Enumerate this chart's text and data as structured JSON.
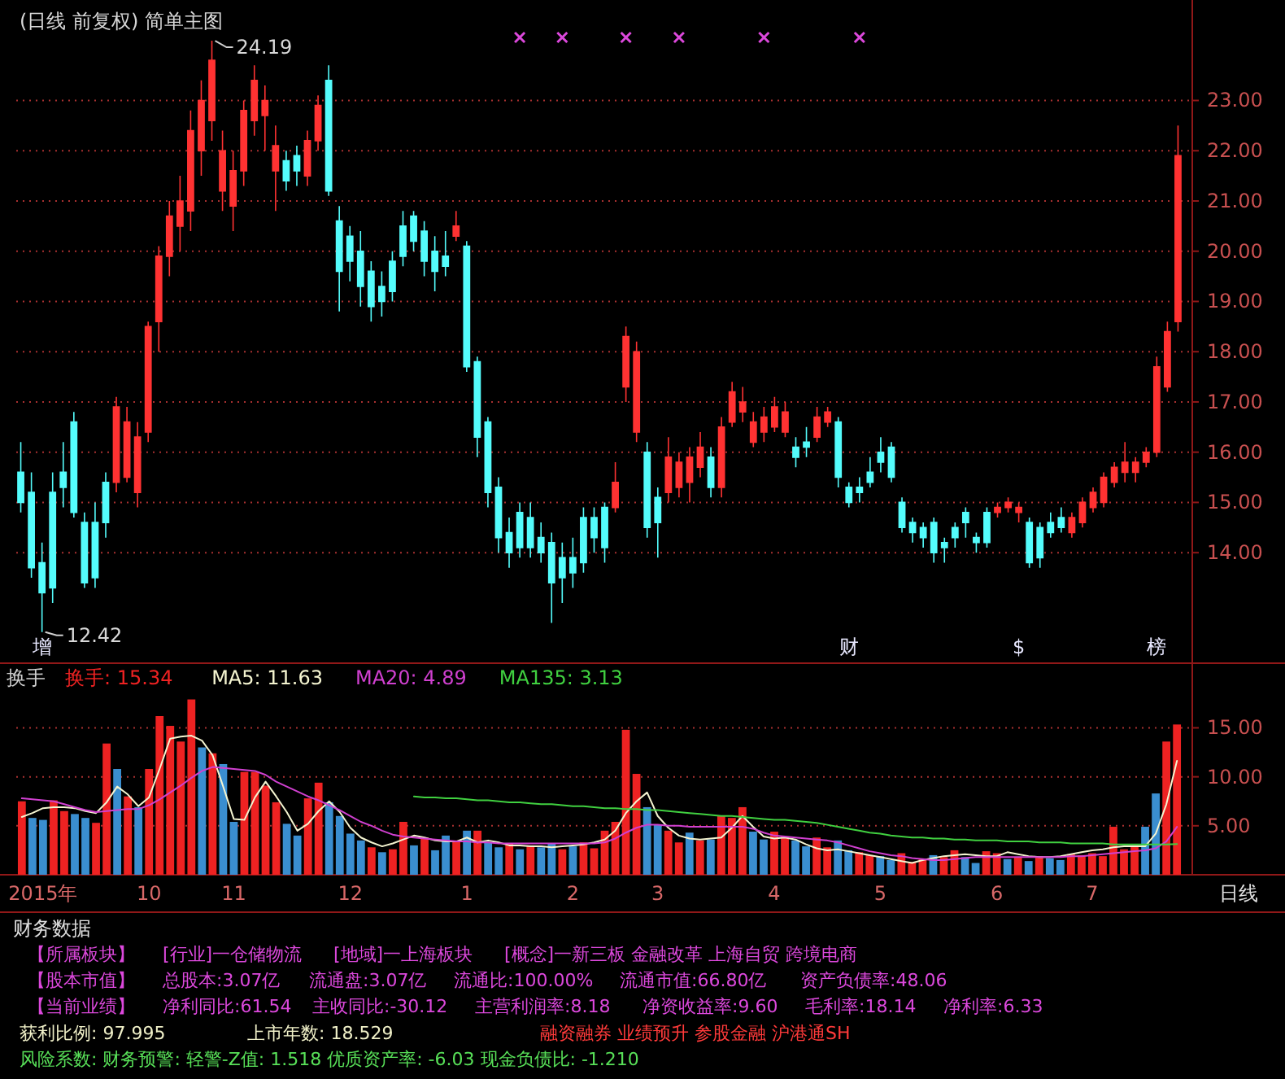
{
  "chart_data": [
    {
      "type": "candlestick",
      "title": "(日线 前复权) 简单主图",
      "categories": [
        null,
        null,
        "增",
        null,
        null,
        null,
        null,
        null,
        null,
        null,
        null,
        null,
        null,
        null,
        null,
        null,
        null,
        null,
        null,
        null,
        null,
        null,
        null,
        null,
        null,
        null,
        null,
        null,
        null,
        null,
        null,
        null,
        null,
        null,
        null,
        null,
        null,
        null,
        null,
        null,
        null,
        null,
        null,
        null,
        null,
        null,
        null,
        null,
        null,
        null,
        null,
        null,
        null,
        null,
        null,
        null,
        null,
        null,
        null,
        null,
        null,
        null,
        null,
        null,
        null,
        null,
        null,
        null,
        null,
        null,
        null,
        null,
        null,
        null,
        null,
        null,
        null,
        null,
        "财",
        null,
        null,
        null,
        null,
        null,
        null,
        null,
        null,
        null,
        null,
        null,
        null,
        null,
        null,
        null,
        "$",
        null,
        null,
        null,
        null,
        null,
        null,
        null,
        null,
        null,
        null,
        null,
        null,
        "榜",
        null,
        null
      ],
      "ohlc": [
        [
          15.6,
          16.2,
          14.8,
          15.0
        ],
        [
          15.2,
          15.6,
          13.5,
          13.7
        ],
        [
          13.8,
          14.2,
          12.42,
          13.2
        ],
        [
          15.2,
          15.6,
          13.0,
          13.3
        ],
        [
          15.6,
          16.2,
          14.9,
          15.3
        ],
        [
          16.6,
          16.8,
          14.7,
          14.8
        ],
        [
          14.6,
          14.8,
          13.3,
          13.4
        ],
        [
          14.6,
          15.0,
          13.3,
          13.5
        ],
        [
          15.4,
          15.6,
          14.3,
          14.6
        ],
        [
          15.4,
          17.1,
          15.2,
          16.9
        ],
        [
          15.5,
          16.9,
          15.4,
          16.6
        ],
        [
          15.2,
          16.6,
          14.9,
          16.3
        ],
        [
          16.4,
          18.6,
          16.2,
          18.5
        ],
        [
          18.6,
          20.1,
          18.0,
          19.9
        ],
        [
          19.9,
          21.0,
          19.5,
          20.7
        ],
        [
          20.5,
          21.5,
          20.0,
          21.0
        ],
        [
          20.8,
          22.8,
          20.4,
          22.4
        ],
        [
          22.0,
          23.4,
          21.5,
          23.0
        ],
        [
          22.6,
          24.19,
          22.2,
          23.8
        ],
        [
          21.2,
          22.4,
          20.8,
          22.0
        ],
        [
          20.9,
          22.0,
          20.4,
          21.6
        ],
        [
          21.6,
          23.0,
          21.3,
          22.8
        ],
        [
          22.6,
          23.7,
          22.3,
          23.4
        ],
        [
          22.7,
          23.3,
          22.0,
          23.0
        ],
        [
          21.6,
          22.5,
          20.8,
          22.1
        ],
        [
          21.8,
          22.0,
          21.2,
          21.4
        ],
        [
          21.9,
          22.1,
          21.3,
          21.6
        ],
        [
          21.5,
          22.4,
          21.3,
          22.2
        ],
        [
          22.2,
          23.1,
          22.0,
          22.9
        ],
        [
          23.4,
          23.7,
          21.1,
          21.2
        ],
        [
          20.6,
          20.9,
          18.8,
          19.6
        ],
        [
          20.3,
          20.5,
          19.4,
          19.8
        ],
        [
          20.0,
          20.4,
          18.9,
          19.3
        ],
        [
          19.6,
          19.8,
          18.6,
          18.9
        ],
        [
          19.3,
          19.6,
          18.7,
          19.0
        ],
        [
          19.8,
          20.0,
          19.0,
          19.2
        ],
        [
          20.5,
          20.8,
          19.7,
          19.9
        ],
        [
          20.7,
          20.8,
          20.0,
          20.2
        ],
        [
          20.4,
          20.6,
          19.5,
          19.8
        ],
        [
          20.0,
          20.3,
          19.2,
          19.6
        ],
        [
          19.9,
          20.4,
          19.5,
          19.7
        ],
        [
          20.3,
          20.8,
          20.2,
          20.5
        ],
        [
          20.1,
          20.2,
          17.6,
          17.7
        ],
        [
          17.8,
          17.9,
          15.9,
          16.3
        ],
        [
          16.6,
          16.7,
          14.9,
          15.2
        ],
        [
          15.3,
          15.5,
          14.0,
          14.3
        ],
        [
          14.4,
          14.7,
          13.7,
          14.0
        ],
        [
          14.8,
          15.0,
          13.9,
          14.1
        ],
        [
          14.7,
          15.0,
          13.9,
          14.1
        ],
        [
          14.3,
          14.6,
          13.8,
          14.0
        ],
        [
          14.2,
          14.4,
          12.6,
          13.4
        ],
        [
          13.9,
          14.2,
          13.0,
          13.5
        ],
        [
          13.9,
          14.3,
          13.3,
          13.6
        ],
        [
          14.7,
          14.9,
          13.6,
          13.8
        ],
        [
          14.7,
          14.9,
          14.0,
          14.3
        ],
        [
          14.9,
          15.0,
          13.8,
          14.1
        ],
        [
          14.9,
          15.8,
          14.8,
          15.4
        ],
        [
          17.3,
          18.5,
          17.0,
          18.3
        ],
        [
          16.4,
          18.2,
          16.2,
          18.0
        ],
        [
          16.0,
          16.2,
          14.3,
          14.5
        ],
        [
          15.1,
          15.3,
          13.9,
          14.6
        ],
        [
          15.2,
          16.3,
          15.0,
          15.9
        ],
        [
          15.3,
          16.0,
          15.1,
          15.8
        ],
        [
          15.4,
          16.1,
          15.0,
          15.9
        ],
        [
          15.7,
          16.4,
          15.5,
          16.1
        ],
        [
          15.9,
          16.1,
          15.1,
          15.3
        ],
        [
          15.3,
          16.7,
          15.1,
          16.5
        ],
        [
          16.6,
          17.4,
          16.5,
          17.2
        ],
        [
          16.8,
          17.3,
          16.6,
          17.0
        ],
        [
          16.2,
          16.8,
          16.1,
          16.6
        ],
        [
          16.4,
          16.9,
          16.2,
          16.7
        ],
        [
          16.5,
          17.1,
          16.4,
          16.9
        ],
        [
          16.4,
          17.0,
          16.3,
          16.8
        ],
        [
          16.1,
          16.3,
          15.7,
          15.9
        ],
        [
          16.2,
          16.5,
          15.9,
          16.1
        ],
        [
          16.3,
          16.9,
          16.2,
          16.7
        ],
        [
          16.6,
          16.9,
          16.5,
          16.8
        ],
        [
          16.6,
          16.7,
          15.3,
          15.5
        ],
        [
          15.3,
          15.4,
          14.9,
          15.0
        ],
        [
          15.3,
          15.5,
          15.0,
          15.2
        ],
        [
          15.6,
          15.9,
          15.3,
          15.4
        ],
        [
          16.0,
          16.3,
          15.6,
          15.8
        ],
        [
          16.1,
          16.2,
          15.4,
          15.5
        ],
        [
          15.0,
          15.1,
          14.4,
          14.5
        ],
        [
          14.6,
          14.7,
          14.2,
          14.4
        ],
        [
          14.5,
          14.6,
          14.1,
          14.3
        ],
        [
          14.6,
          14.7,
          13.8,
          14.0
        ],
        [
          14.2,
          14.3,
          13.8,
          14.1
        ],
        [
          14.5,
          14.6,
          14.1,
          14.3
        ],
        [
          14.8,
          14.9,
          14.3,
          14.6
        ],
        [
          14.3,
          14.4,
          14.0,
          14.2
        ],
        [
          14.8,
          14.9,
          14.1,
          14.2
        ],
        [
          14.8,
          15.0,
          14.7,
          14.9
        ],
        [
          14.9,
          15.1,
          14.8,
          15.0
        ],
        [
          14.8,
          15.0,
          14.6,
          14.9
        ],
        [
          14.6,
          14.7,
          13.7,
          13.8
        ],
        [
          14.5,
          14.6,
          13.7,
          13.9
        ],
        [
          14.6,
          14.8,
          14.3,
          14.4
        ],
        [
          14.7,
          14.9,
          14.4,
          14.5
        ],
        [
          14.4,
          14.8,
          14.3,
          14.7
        ],
        [
          14.6,
          15.1,
          14.5,
          15.0
        ],
        [
          14.9,
          15.3,
          14.8,
          15.2
        ],
        [
          15.0,
          15.6,
          14.9,
          15.5
        ],
        [
          15.4,
          15.8,
          15.3,
          15.7
        ],
        [
          15.6,
          16.2,
          15.4,
          15.8
        ],
        [
          15.6,
          15.9,
          15.4,
          15.8
        ],
        [
          15.8,
          16.1,
          15.7,
          16.0
        ],
        [
          16.0,
          17.9,
          15.9,
          17.7
        ],
        [
          17.3,
          18.6,
          17.2,
          18.4
        ],
        [
          18.6,
          22.5,
          18.4,
          21.9
        ]
      ],
      "colors": [
        "#54fcfc",
        "#54fcfc",
        "#54fcfc",
        "#54fcfc",
        "#54fcfc",
        "#54fcfc",
        "#54fcfc",
        "#54fcfc",
        "#54fcfc",
        "#ff3232",
        "#ff3232",
        "#ff3232",
        "#ff3232",
        "#ff3232",
        "#ff3232",
        "#ff3232",
        "#ff3232",
        "#ff3232",
        "#ff3232",
        "#ff3232",
        "#ff3232",
        "#ff3232",
        "#ff3232",
        "#ff3232",
        "#ff3232",
        "#54fcfc",
        "#54fcfc",
        "#ff3232",
        "#ff3232",
        "#54fcfc",
        "#54fcfc",
        "#54fcfc",
        "#54fcfc",
        "#54fcfc",
        "#54fcfc",
        "#54fcfc",
        "#54fcfc",
        "#54fcfc",
        "#54fcfc",
        "#54fcfc",
        "#54fcfc",
        "#ff3232",
        "#54fcfc",
        "#54fcfc",
        "#54fcfc",
        "#54fcfc",
        "#54fcfc",
        "#54fcfc",
        "#54fcfc",
        "#54fcfc",
        "#54fcfc",
        "#54fcfc",
        "#54fcfc",
        "#54fcfc",
        "#54fcfc",
        "#54fcfc",
        "#ff3232",
        "#ff3232",
        "#ff3232",
        "#54fcfc",
        "#54fcfc",
        "#ff3232",
        "#ff3232",
        "#ff3232",
        "#ff3232",
        "#54fcfc",
        "#ff3232",
        "#ff3232",
        "#ff3232",
        "#ff3232",
        "#ff3232",
        "#ff3232",
        "#ff3232",
        "#54fcfc",
        "#54fcfc",
        "#ff3232",
        "#ff3232",
        "#54fcfc",
        "#54fcfc",
        "#54fcfc",
        "#54fcfc",
        "#54fcfc",
        "#54fcfc",
        "#54fcfc",
        "#54fcfc",
        "#54fcfc",
        "#54fcfc",
        "#54fcfc",
        "#54fcfc",
        "#54fcfc",
        "#54fcfc",
        "#54fcfc",
        "#ff3232",
        "#ff3232",
        "#ff3232",
        "#54fcfc",
        "#54fcfc",
        "#54fcfc",
        "#54fcfc",
        "#ff3232",
        "#ff3232",
        "#ff3232",
        "#ff3232",
        "#ff3232",
        "#ff3232",
        "#ff3232",
        "#ff3232",
        "#ff3232",
        "#ff3232",
        "#ff3232"
      ],
      "ylim": [
        11.8,
        25
      ],
      "yticks": [
        {
          "value": 14,
          "label": "14.00"
        },
        {
          "value": 15,
          "label": "15.00"
        },
        {
          "value": 16,
          "label": "16.00"
        },
        {
          "value": 17,
          "label": "17.00"
        },
        {
          "value": 18,
          "label": "18.00"
        },
        {
          "value": 19,
          "label": "19.00"
        },
        {
          "value": 20,
          "label": "20.00"
        },
        {
          "value": 21,
          "label": "21.00"
        },
        {
          "value": 22,
          "label": "22.00"
        },
        {
          "value": 23,
          "label": "23.00"
        }
      ],
      "grid": "y",
      "annotations": [
        "24.19",
        "12.42"
      ]
    },
    {
      "type": "bar",
      "title": "换手",
      "xlabel": "日线",
      "categories": [
        null,
        null,
        "2015年",
        null,
        null,
        null,
        null,
        null,
        null,
        null,
        null,
        null,
        "10",
        null,
        null,
        null,
        null,
        null,
        null,
        null,
        "11",
        null,
        null,
        null,
        null,
        null,
        null,
        null,
        null,
        null,
        null,
        "12",
        null,
        null,
        null,
        null,
        null,
        null,
        null,
        null,
        null,
        null,
        "1",
        null,
        null,
        null,
        null,
        null,
        null,
        null,
        null,
        null,
        "2",
        null,
        null,
        null,
        null,
        null,
        null,
        null,
        "3",
        null,
        null,
        null,
        null,
        null,
        null,
        null,
        null,
        null,
        null,
        "4",
        null,
        null,
        null,
        null,
        null,
        null,
        null,
        null,
        null,
        "5",
        null,
        null,
        null,
        null,
        null,
        null,
        null,
        null,
        null,
        null,
        "6",
        null,
        null,
        null,
        null,
        null,
        null,
        null,
        null,
        "7",
        null,
        null,
        null,
        null,
        null,
        null,
        null,
        null
      ],
      "series": [
        {
          "name": "换手: 15.34",
          "type": "bar",
          "colors": [
            "#ee2222",
            "#3a8ed0",
            "#3a8ed0",
            "#ee2222",
            "#ee2222",
            "#3a8ed0",
            "#3a8ed0",
            "#ee2222",
            "#ee2222",
            "#3a8ed0",
            "#ee2222",
            "#3a8ed0",
            "#ee2222",
            "#ee2222",
            "#ee2222",
            "#ee2222",
            "#ee2222",
            "#3a8ed0",
            "#ee2222",
            "#3a8ed0",
            "#3a8ed0",
            "#ee2222",
            "#ee2222",
            "#ee2222",
            "#ee2222",
            "#3a8ed0",
            "#3a8ed0",
            "#ee2222",
            "#ee2222",
            "#3a8ed0",
            "#3a8ed0",
            "#3a8ed0",
            "#3a8ed0",
            "#ee2222",
            "#3a8ed0",
            "#ee2222",
            "#ee2222",
            "#3a8ed0",
            "#ee2222",
            "#3a8ed0",
            "#3a8ed0",
            "#ee2222",
            "#3a8ed0",
            "#ee2222",
            "#3a8ed0",
            "#3a8ed0",
            "#ee2222",
            "#3a8ed0",
            "#ee2222",
            "#3a8ed0",
            "#3a8ed0",
            "#ee2222",
            "#3a8ed0",
            "#ee2222",
            "#ee2222",
            "#ee2222",
            "#ee2222",
            "#ee2222",
            "#ee2222",
            "#3a8ed0",
            "#3a8ed0",
            "#ee2222",
            "#ee2222",
            "#3a8ed0",
            "#ee2222",
            "#3a8ed0",
            "#ee2222",
            "#ee2222",
            "#ee2222",
            "#3a8ed0",
            "#3a8ed0",
            "#ee2222",
            "#ee2222",
            "#3a8ed0",
            "#3a8ed0",
            "#ee2222",
            "#ee2222",
            "#3a8ed0",
            "#3a8ed0",
            "#ee2222",
            "#ee2222",
            "#3a8ed0",
            "#3a8ed0",
            "#ee2222",
            "#ee2222",
            "#ee2222",
            "#3a8ed0",
            "#ee2222",
            "#ee2222",
            "#3a8ed0",
            "#3a8ed0",
            "#ee2222",
            "#ee2222",
            "#3a8ed0",
            "#ee2222",
            "#3a8ed0",
            "#ee2222",
            "#3a8ed0",
            "#3a8ed0",
            "#ee2222",
            "#ee2222",
            "#ee2222",
            "#ee2222",
            "#ee2222",
            "#ee2222",
            "#ee2222",
            "#3a8ed0",
            "#3a8ed0",
            "#ee2222",
            "#ee2222"
          ],
          "values": [
            7.5,
            5.8,
            5.6,
            7.6,
            6.5,
            6.2,
            5.8,
            5.3,
            13.4,
            10.8,
            8.0,
            6.9,
            10.8,
            16.2,
            15.2,
            13.6,
            17.9,
            13.0,
            12.4,
            11.3,
            5.4,
            10.5,
            10.5,
            9.1,
            7.4,
            5.2,
            4.0,
            7.8,
            9.4,
            7.4,
            6.0,
            4.2,
            3.5,
            2.8,
            2.3,
            2.6,
            5.4,
            3.0,
            3.8,
            2.5,
            4.0,
            3.5,
            4.5,
            4.5,
            3.3,
            2.8,
            3.2,
            2.6,
            3.0,
            2.8,
            3.2,
            2.6,
            2.9,
            3.3,
            2.7,
            4.5,
            5.4,
            14.8,
            10.3,
            6.9,
            5.1,
            4.5,
            3.3,
            4.3,
            3.5,
            3.6,
            6.0,
            5.8,
            6.9,
            4.4,
            3.6,
            4.4,
            3.9,
            3.5,
            2.9,
            3.8,
            2.8,
            3.5,
            2.5,
            2.3,
            2.0,
            1.9,
            1.5,
            2.2,
            1.3,
            1.6,
            2.0,
            1.8,
            2.5,
            1.8,
            1.2,
            2.4,
            2.2,
            1.6,
            1.8,
            1.4,
            1.9,
            1.7,
            1.5,
            2.1,
            2.0,
            2.2,
            1.9,
            4.9,
            2.6,
            2.9,
            4.9,
            8.3,
            13.6,
            15.34
          ]
        },
        {
          "name": "MA5: 11.63",
          "type": "line",
          "color": "#f4f4d0",
          "values": [
            5.9,
            6.3,
            6.8,
            6.9,
            6.9,
            6.8,
            6.5,
            6.3,
            7.4,
            9.0,
            8.2,
            7.0,
            7.9,
            10.8,
            13.9,
            14.1,
            14.2,
            13.7,
            12.2,
            9.0,
            5.7,
            5.6,
            7.9,
            9.5,
            8.0,
            6.4,
            4.5,
            5.2,
            6.5,
            7.5,
            6.4,
            4.8,
            3.8,
            3.3,
            2.9,
            3.2,
            3.6,
            4.0,
            3.8,
            3.5,
            3.4,
            3.4,
            3.8,
            3.3,
            3.5,
            3.3,
            3.0,
            3.0,
            2.9,
            2.9,
            2.8,
            2.9,
            3.0,
            3.1,
            3.3,
            3.6,
            4.5,
            6.3,
            7.5,
            8.4,
            6.0,
            4.8,
            4.0,
            3.7,
            3.6,
            3.7,
            3.8,
            4.8,
            6.0,
            4.9,
            3.9,
            3.7,
            3.8,
            3.6,
            3.1,
            2.7,
            2.5,
            2.6,
            2.4,
            2.2,
            2.0,
            1.8,
            1.6,
            1.4,
            1.2,
            1.5,
            1.7,
            1.9,
            2.0,
            2.1,
            2.0,
            1.9,
            1.9,
            2.3,
            2.1,
            1.9,
            1.8,
            1.8,
            1.9,
            2.1,
            2.3,
            2.5,
            2.6,
            2.8,
            2.9,
            2.9,
            2.9,
            4.2,
            7.2,
            11.63
          ]
        },
        {
          "name": "MA20: 4.89",
          "type": "line",
          "color": "#d040d0",
          "values": [
            7.8,
            7.7,
            7.6,
            7.5,
            7.2,
            6.9,
            6.6,
            6.4,
            6.5,
            6.6,
            6.7,
            6.7,
            7.1,
            7.7,
            8.4,
            9.1,
            9.9,
            10.6,
            11.0,
            10.9,
            10.8,
            10.7,
            10.6,
            10.2,
            9.5,
            9.0,
            8.5,
            8.0,
            7.6,
            7.1,
            6.6,
            6.0,
            5.4,
            5.0,
            4.5,
            4.1,
            3.9,
            3.8,
            3.7,
            3.6,
            3.5,
            3.4,
            3.4,
            3.3,
            3.3,
            3.2,
            3.2,
            3.2,
            3.2,
            3.2,
            3.2,
            3.2,
            3.2,
            3.2,
            3.2,
            3.3,
            3.7,
            4.3,
            4.8,
            5.1,
            5.1,
            5.0,
            5.0,
            4.9,
            4.9,
            4.9,
            4.9,
            4.9,
            4.9,
            4.7,
            4.3,
            4.0,
            3.9,
            3.8,
            3.7,
            3.6,
            3.5,
            3.3,
            3.0,
            2.7,
            2.4,
            2.2,
            2.0,
            1.9,
            1.7,
            1.6,
            1.5,
            1.5,
            1.6,
            1.7,
            1.8,
            1.8,
            1.8,
            1.8,
            1.8,
            1.8,
            1.8,
            1.8,
            1.8,
            1.9,
            1.9,
            2.0,
            2.1,
            2.2,
            2.3,
            2.4,
            2.5,
            2.7,
            3.4,
            4.89
          ]
        },
        {
          "name": "MA135: 3.13",
          "type": "line",
          "color": "#40d040",
          "values": [
            null,
            null,
            null,
            null,
            null,
            null,
            null,
            null,
            null,
            null,
            null,
            null,
            null,
            null,
            null,
            null,
            null,
            null,
            null,
            null,
            null,
            null,
            null,
            null,
            null,
            null,
            null,
            null,
            null,
            null,
            null,
            null,
            null,
            null,
            null,
            null,
            null,
            8.0,
            7.9,
            7.9,
            7.8,
            7.8,
            7.7,
            7.6,
            7.6,
            7.5,
            7.4,
            7.4,
            7.3,
            7.2,
            7.2,
            7.1,
            7.0,
            7.0,
            6.9,
            6.8,
            6.8,
            6.7,
            6.7,
            6.6,
            6.6,
            6.5,
            6.4,
            6.3,
            6.2,
            6.1,
            6.0,
            6.0,
            5.9,
            5.8,
            5.7,
            5.6,
            5.6,
            5.5,
            5.4,
            5.3,
            5.1,
            4.9,
            4.7,
            4.5,
            4.3,
            4.2,
            4.0,
            3.9,
            3.8,
            3.8,
            3.7,
            3.7,
            3.6,
            3.6,
            3.5,
            3.5,
            3.5,
            3.4,
            3.4,
            3.4,
            3.3,
            3.3,
            3.3,
            3.2,
            3.2,
            3.2,
            3.2,
            3.1,
            3.1,
            3.1,
            3.1,
            3.1,
            3.1,
            3.13
          ]
        }
      ],
      "ylim": [
        0,
        21.6
      ],
      "yticks": [
        {
          "value": 5,
          "label": "5.00"
        },
        {
          "value": 10,
          "label": "10.00"
        },
        {
          "value": 15,
          "label": "15.00"
        }
      ],
      "grid": "y",
      "legend": "top left"
    },
    {
      "type": "other",
      "title": "财务数据",
      "annotations": [
        "【所属板块】",
        "[行业]一仓储物流",
        "[地域]一上海板块",
        "[概念]一新三板 金融改革 上海自贸 跨境电商",
        "【股本市值】",
        "总股本:3.07亿",
        "流通盘:3.07亿",
        "流通比:100.00%",
        "流通市值:66.80亿",
        "资产负债率:48.06",
        "【当前业绩】",
        "净利同比:61.54",
        "主收同比:-30.12",
        "主营利润率:8.18",
        "净资收益率:9.60",
        "毛利率:18.14",
        "净利率:6.33",
        "获利比例: 97.995",
        "上市年数: 18.529",
        "融资融券 业绩预升 参股金融 沪港通SH",
        "风险系数: 财务预警: 轻警-Z值: 1.518 优质资产率: -6.03 现金负债比: -1.210"
      ]
    }
  ]
}
